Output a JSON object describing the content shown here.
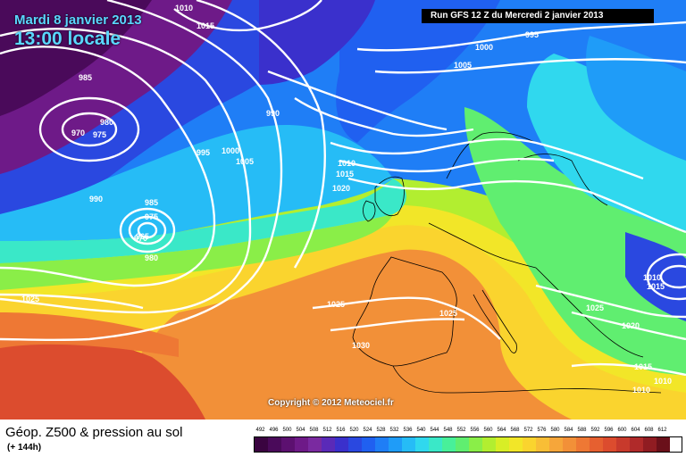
{
  "header": {
    "date": "Mardi 8 janvier 2013",
    "time": "13:00 locale",
    "run_info": "Run GFS 12 Z du Mercredi 2 janvier 2013"
  },
  "footer": {
    "copyright": "Copyright © 2012 Meteociel.fr",
    "product": "Géop. Z500 & pression au sol",
    "forecast_hour": "(+ 144h)"
  },
  "legend": {
    "values": [
      "492",
      "496",
      "500",
      "504",
      "508",
      "512",
      "516",
      "520",
      "524",
      "528",
      "532",
      "536",
      "540",
      "544",
      "548",
      "552",
      "556",
      "560",
      "564",
      "568",
      "572",
      "576",
      "580",
      "584",
      "588",
      "592",
      "596",
      "600",
      "604",
      "608",
      "612"
    ],
    "colors": [
      "#3a0440",
      "#4a0a5a",
      "#5c1070",
      "#6e1a88",
      "#7a2aa0",
      "#5a2ab8",
      "#3a30cc",
      "#2a48e0",
      "#2060f0",
      "#1f7ef6",
      "#1f9cf8",
      "#26bcf6",
      "#30d8ee",
      "#3ae8c8",
      "#48f09a",
      "#60ee70",
      "#8aee48",
      "#b2ee30",
      "#d8ee26",
      "#f2e628",
      "#fad42e",
      "#f8be36",
      "#f6a63a",
      "#f29038",
      "#ee7834",
      "#e66030",
      "#dc4c2e",
      "#c83a2c",
      "#b02a2a",
      "#901c22",
      "#6a101a"
    ]
  },
  "isobar_labels": [
    {
      "text": "1010"
    },
    {
      "text": "1015"
    },
    {
      "text": "985"
    },
    {
      "text": "980"
    },
    {
      "text": "970"
    },
    {
      "text": "975"
    },
    {
      "text": "990"
    },
    {
      "text": "995"
    },
    {
      "text": "1000"
    },
    {
      "text": "1005"
    },
    {
      "text": "990"
    },
    {
      "text": "985"
    },
    {
      "text": "975"
    },
    {
      "text": "970"
    },
    {
      "text": "965"
    },
    {
      "text": "980"
    },
    {
      "text": "1025"
    },
    {
      "text": "1010"
    },
    {
      "text": "1015"
    },
    {
      "text": "1020"
    },
    {
      "text": "1025"
    },
    {
      "text": "1030"
    },
    {
      "text": "1025"
    },
    {
      "text": "1000"
    },
    {
      "text": "1005"
    },
    {
      "text": "995"
    },
    {
      "text": "1010"
    },
    {
      "text": "1015"
    },
    {
      "text": "1025"
    },
    {
      "text": "1020"
    },
    {
      "text": "1015"
    },
    {
      "text": "1010"
    },
    {
      "text": "1010"
    }
  ]
}
